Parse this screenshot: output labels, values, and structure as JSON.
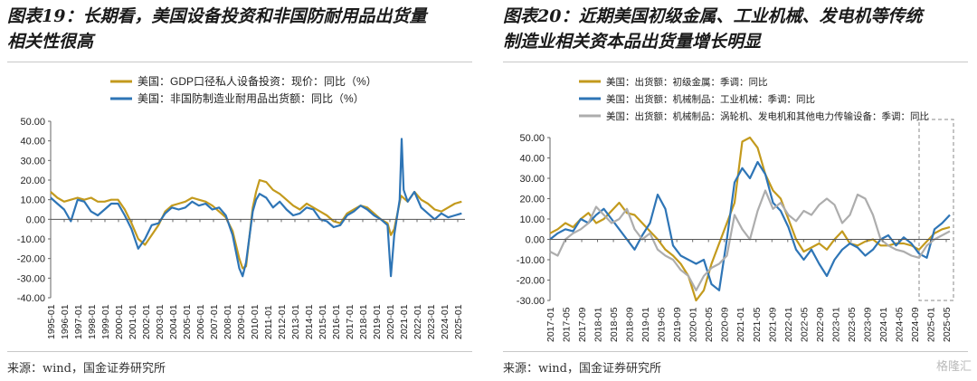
{
  "left_title_line1": "图表19：长期看，美国设备投资和非国防耐用品出货量",
  "left_title_line2": "相关性很高",
  "right_title_line1": "图表20：近期美国初级金属、工业机械、发电机等传统",
  "right_title_line2": "制造业相关资本品出货量增长明显",
  "left_source": "来源：wind，国金证券研究所",
  "right_source": "来源：wind，国金证券研究所",
  "watermark": "格隆汇",
  "colors": {
    "gold": "#C39A1D",
    "blue": "#2E75B6",
    "gray": "#ADADAD"
  },
  "chart_data": [
    {
      "type": "line",
      "ylim": [
        -40,
        50
      ],
      "yticks": [
        -40,
        -30,
        -20,
        -10,
        0,
        10,
        20,
        30,
        40,
        50
      ],
      "ytick_labels": [
        "-40.00",
        "-30.00",
        "-20.00",
        "-10.00",
        "0.00",
        "10.00",
        "20.00",
        "30.00",
        "40.00",
        "50.00"
      ],
      "xtick_labels": [
        "1995-01",
        "1996-01",
        "1997-01",
        "1998-01",
        "1999-01",
        "2000-01",
        "2001-01",
        "2002-01",
        "2003-01",
        "2004-01",
        "2005-01",
        "2006-01",
        "2007-01",
        "2008-01",
        "2009-01",
        "2010-01",
        "2011-01",
        "2012-01",
        "2013-01",
        "2014-01",
        "2015-01",
        "2016-01",
        "2017-01",
        "2018-01",
        "2019-01",
        "2020-01",
        "2021-01",
        "2022-01",
        "2023-01",
        "2024-01",
        "2025-01"
      ],
      "x_start": 1995.0,
      "x_end": 2025.75,
      "series": [
        {
          "name": "美国：GDP口径私人设备投资：现价：同比（%）",
          "color": "#C39A1D",
          "x": [
            1995,
            1995.5,
            1996,
            1996.5,
            1997,
            1997.5,
            1998,
            1998.5,
            1999,
            1999.5,
            2000,
            2000.5,
            2001,
            2001.5,
            2002,
            2002.5,
            2003,
            2003.5,
            2004,
            2004.5,
            2005,
            2005.5,
            2006,
            2006.5,
            2007,
            2007.5,
            2008,
            2008.5,
            2009,
            2009.25,
            2009.5,
            2010,
            2010.25,
            2010.5,
            2011,
            2011.5,
            2012,
            2012.5,
            2013,
            2013.5,
            2014,
            2014.5,
            2015,
            2015.5,
            2016,
            2016.5,
            2017,
            2017.5,
            2018,
            2018.5,
            2019,
            2019.5,
            2020,
            2020.25,
            2020.5,
            2021,
            2021.5,
            2022,
            2022.5,
            2023,
            2023.5,
            2024,
            2024.5,
            2025,
            2025.5
          ],
          "y": [
            14,
            11,
            9,
            10,
            11,
            10,
            11,
            9,
            9,
            10,
            10,
            5,
            -2,
            -10,
            -13,
            -8,
            -3,
            4,
            7,
            8,
            9,
            11,
            10,
            9,
            7,
            4,
            1,
            -6,
            -20,
            -25,
            -24,
            6,
            14,
            20,
            19,
            15,
            13,
            10,
            7,
            5,
            8,
            6,
            4,
            2,
            -1,
            -2,
            3,
            5,
            7,
            6,
            3,
            0,
            -2,
            -8,
            -5,
            12,
            9,
            14,
            10,
            8,
            5,
            4,
            6,
            8,
            9
          ]
        },
        {
          "name": "美国：非国防制造业耐用品出货额：同比（%）",
          "color": "#2E75B6",
          "x": [
            1995,
            1995.5,
            1996,
            1996.5,
            1997,
            1997.5,
            1998,
            1998.5,
            1999,
            1999.5,
            2000,
            2000.5,
            2001,
            2001.5,
            2002,
            2002.5,
            2003,
            2003.5,
            2004,
            2004.5,
            2005,
            2005.5,
            2006,
            2006.5,
            2007,
            2007.5,
            2008,
            2008.5,
            2009,
            2009.25,
            2009.5,
            2010,
            2010.25,
            2010.5,
            2011,
            2011.5,
            2012,
            2012.5,
            2013,
            2013.5,
            2014,
            2014.5,
            2015,
            2015.5,
            2016,
            2016.5,
            2017,
            2017.5,
            2018,
            2018.5,
            2019,
            2019.5,
            2020,
            2020.25,
            2020.5,
            2020.9,
            2021.05,
            2021.2,
            2021.5,
            2022,
            2022.5,
            2023,
            2023.5,
            2024,
            2024.5,
            2025,
            2025.5
          ],
          "y": [
            11,
            8,
            5,
            -1,
            10,
            9,
            4,
            2,
            5,
            8,
            8,
            2,
            -5,
            -15,
            -10,
            -3,
            -2,
            3,
            6,
            5,
            6,
            9,
            7,
            8,
            5,
            6,
            2,
            -8,
            -25,
            -29,
            -22,
            4,
            10,
            13,
            11,
            6,
            9,
            5,
            2,
            3,
            6,
            5,
            0,
            -1,
            -4,
            -3,
            2,
            4,
            7,
            5,
            2,
            0,
            -3,
            -29,
            -8,
            10,
            41,
            15,
            9,
            14,
            6,
            3,
            0,
            3,
            1,
            2,
            3
          ]
        }
      ]
    },
    {
      "type": "line",
      "ylim": [
        -30,
        50
      ],
      "yticks": [
        -30,
        -20,
        -10,
        0,
        10,
        20,
        30,
        40,
        50
      ],
      "ytick_labels": [
        "-30.00",
        "-20.00",
        "-10.00",
        "0.00",
        "10.00",
        "20.00",
        "30.00",
        "40.00",
        "50.00"
      ],
      "xtick_labels": [
        "2017-01",
        "2017-05",
        "2017-09",
        "2018-01",
        "2018-05",
        "2018-09",
        "2019-01",
        "2019-05",
        "2019-09",
        "2020-01",
        "2020-05",
        "2020-09",
        "2021-01",
        "2021-05",
        "2021-09",
        "2022-01",
        "2022-05",
        "2022-09",
        "2023-01",
        "2023-05",
        "2023-09",
        "2024-01",
        "2024-05",
        "2024-09",
        "2025-01",
        "2025-05"
      ],
      "x_start": 0,
      "x_end": 104,
      "series": [
        {
          "name": "美国：出货额：初级金属：季调：同比",
          "color": "#C39A1D",
          "x": [
            0,
            2,
            4,
            6,
            8,
            10,
            12,
            14,
            16,
            18,
            20,
            22,
            24,
            26,
            28,
            30,
            32,
            34,
            36,
            38,
            40,
            42,
            44,
            46,
            48,
            50,
            52,
            54,
            56,
            58,
            60,
            62,
            64,
            66,
            68,
            70,
            72,
            74,
            76,
            78,
            80,
            82,
            84,
            86,
            88,
            90,
            92,
            94,
            96,
            98,
            100,
            102,
            104
          ],
          "y": [
            3,
            5,
            8,
            6,
            10,
            13,
            8,
            10,
            14,
            18,
            13,
            12,
            8,
            4,
            0,
            -5,
            -8,
            -12,
            -18,
            -30,
            -25,
            -12,
            -2,
            8,
            18,
            48,
            50,
            45,
            32,
            24,
            20,
            10,
            0,
            -6,
            -4,
            -2,
            -5,
            0,
            4,
            -2,
            -3,
            -1,
            0,
            -3,
            -3,
            -2,
            -2,
            -3,
            -5,
            -1,
            3,
            5,
            6
          ]
        },
        {
          "name": "美国：出货额：机械制品：工业机械：季调：同比",
          "color": "#2E75B6",
          "x": [
            0,
            2,
            4,
            6,
            8,
            10,
            12,
            14,
            16,
            18,
            20,
            22,
            24,
            26,
            28,
            30,
            32,
            34,
            36,
            38,
            40,
            42,
            44,
            46,
            48,
            50,
            52,
            54,
            56,
            58,
            60,
            62,
            64,
            66,
            68,
            70,
            72,
            74,
            76,
            78,
            80,
            82,
            84,
            86,
            88,
            90,
            92,
            94,
            96,
            98,
            100,
            102,
            104
          ],
          "y": [
            0,
            3,
            5,
            4,
            10,
            8,
            12,
            15,
            10,
            5,
            0,
            -5,
            2,
            8,
            22,
            15,
            -3,
            -8,
            -10,
            -12,
            -10,
            -22,
            -25,
            0,
            28,
            35,
            30,
            38,
            32,
            18,
            14,
            6,
            -5,
            -10,
            -5,
            -12,
            -18,
            -10,
            -5,
            -2,
            -4,
            -8,
            -5,
            0,
            2,
            -3,
            1,
            -2,
            -7,
            -9,
            5,
            8,
            12
          ]
        },
        {
          "name": "美国：出货额：机械制品：涡轮机、发电机和其他电力传输设备：季调：同比",
          "color": "#ADADAD",
          "x": [
            0,
            2,
            4,
            6,
            8,
            10,
            12,
            14,
            16,
            18,
            20,
            22,
            24,
            26,
            28,
            30,
            32,
            34,
            36,
            38,
            40,
            42,
            44,
            46,
            48,
            50,
            52,
            54,
            56,
            58,
            60,
            62,
            64,
            66,
            68,
            70,
            72,
            74,
            76,
            78,
            80,
            82,
            84,
            86,
            88,
            90,
            92,
            94,
            96,
            98,
            100,
            102,
            104
          ],
          "y": [
            -6,
            -8,
            0,
            3,
            5,
            8,
            16,
            12,
            8,
            10,
            15,
            5,
            0,
            3,
            -5,
            -8,
            -10,
            -15,
            -18,
            -25,
            -18,
            -14,
            -12,
            -8,
            12,
            5,
            0,
            14,
            24,
            15,
            18,
            12,
            9,
            14,
            12,
            17,
            20,
            17,
            8,
            12,
            22,
            20,
            12,
            0,
            -3,
            -5,
            -6,
            -8,
            -9,
            -3,
            0,
            2,
            4
          ]
        }
      ],
      "highlight_x": [
        96,
        104
      ]
    }
  ]
}
